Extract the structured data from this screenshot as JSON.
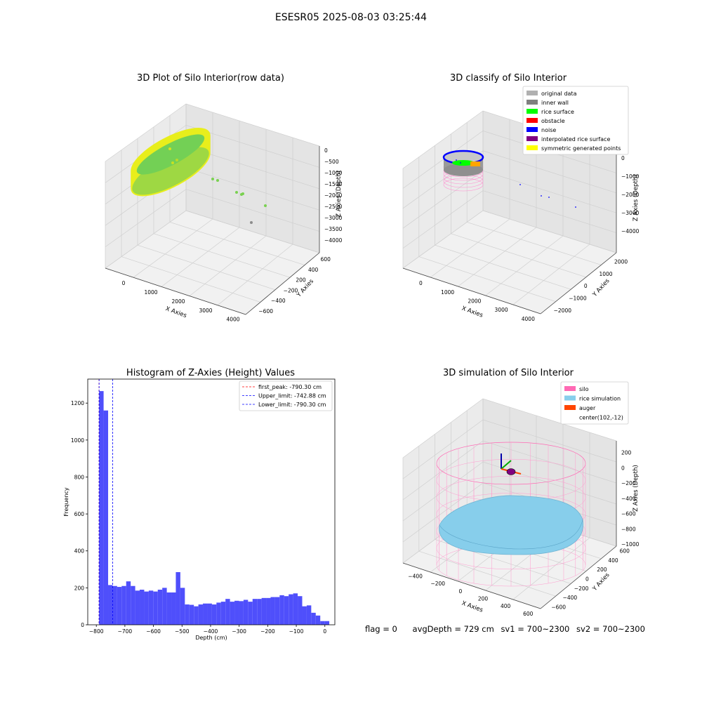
{
  "suptitle": "ESESR05 2025-08-03 03:25:44",
  "footer": {
    "flag": "flag = 0",
    "avg_depth": "avgDepth = 729 cm",
    "sv1": "sv1 = 700~2300",
    "sv2": "sv2 = 700~2300"
  },
  "colors": {
    "hist_bar": "#4f4ffb",
    "first_peak_line": "#ff0000",
    "limit_line": "#0000ff",
    "pane_fill": "#f2f2f2",
    "grid": "#cfcfcf"
  },
  "chart_data": [
    {
      "type": "scatter",
      "projection": "3d",
      "title": "3D Plot of Silo Interior(row data)",
      "xlabel": "X Axies",
      "ylabel": "Y Axies",
      "zlabel": "Z Axies (Depth)",
      "x_ticks": [
        "0",
        "1000",
        "2000",
        "3000",
        "4000"
      ],
      "y_ticks": [
        "600",
        "400",
        "200",
        "−200",
        "−400",
        "−600"
      ],
      "z_ticks": [
        "0",
        "−500",
        "−1000",
        "−1500",
        "−2000",
        "−2500",
        "−3000",
        "−3500",
        "−4000"
      ],
      "colormap": "viridis (yellow-green)",
      "series": [
        {
          "points": [
            [
              0,
              0,
              -300
            ],
            [
              500,
              0,
              -800
            ],
            [
              1000,
              100,
              -1200
            ],
            [
              2200,
              100,
              -1500
            ],
            [
              2600,
              100,
              -1900
            ],
            [
              2900,
              200,
              -2100
            ],
            [
              3600,
              300,
              -2600
            ],
            [
              4000,
              300,
              -3500
            ]
          ]
        }
      ]
    },
    {
      "type": "scatter",
      "projection": "3d",
      "title": "3D classify of Silo Interior",
      "xlabel": "X Axies",
      "ylabel": "Y Axies",
      "zlabel": "Z Axies (Depth)",
      "x_ticks": [
        "0",
        "1000",
        "2000",
        "3000",
        "4000"
      ],
      "y_ticks": [
        "2000",
        "1000",
        "0",
        "−1000",
        "−2000"
      ],
      "z_ticks": [
        "0",
        "−1000",
        "−2000",
        "−3000",
        "−4000"
      ],
      "legend": [
        {
          "label": "original data",
          "color": "#b0b0b0"
        },
        {
          "label": "inner wall",
          "color": "#808080"
        },
        {
          "label": "rice surface",
          "color": "#00ff00"
        },
        {
          "label": "obstacle",
          "color": "#ff0000"
        },
        {
          "label": "noise",
          "color": "#0000ff"
        },
        {
          "label": "interpolated rice surface",
          "color": "#800080"
        },
        {
          "label": "symmetric generated points",
          "color": "#ffff00"
        }
      ],
      "legend_loc": "upper right"
    },
    {
      "type": "bar",
      "title": "Histogram of Z-Axies (Height) Values",
      "xlabel": "Depth (cm)",
      "ylabel": "Frequency",
      "xlim": [
        -830,
        35
      ],
      "ylim": [
        0,
        1330
      ],
      "x_ticks": [
        "−800",
        "−700",
        "−600",
        "−500",
        "−400",
        "−300",
        "−200",
        "−100",
        "0"
      ],
      "y_ticks": [
        "0",
        "200",
        "400",
        "600",
        "800",
        "1000",
        "1200"
      ],
      "bin_start": -790.3,
      "bin_width": 15.8,
      "values": [
        1265,
        1160,
        215,
        210,
        205,
        210,
        235,
        210,
        185,
        190,
        180,
        185,
        180,
        190,
        200,
        175,
        175,
        285,
        200,
        110,
        108,
        100,
        110,
        115,
        115,
        110,
        120,
        125,
        140,
        125,
        130,
        128,
        135,
        125,
        140,
        140,
        145,
        145,
        150,
        150,
        160,
        155,
        165,
        170,
        155,
        100,
        105,
        65,
        50,
        20,
        20
      ],
      "reference_lines": [
        {
          "label": "first_peak: -790.30 cm",
          "x": -790.3,
          "color": "#ff0000"
        },
        {
          "label": "Upper_limit: -742.88 cm",
          "x": -742.88,
          "color": "#0000ff"
        },
        {
          "label": "Lower_limit: -790.30 cm",
          "x": -790.3,
          "color": "#0000ff"
        }
      ],
      "legend_loc": "upper right"
    },
    {
      "type": "scatter",
      "projection": "3d",
      "title": "3D simulation of Silo Interior",
      "xlabel": "X Axies",
      "ylabel": "Y Axies",
      "zlabel": "Z Axies (Depth)",
      "x_ticks": [
        "−400",
        "−200",
        "0",
        "200",
        "400",
        "600"
      ],
      "y_ticks": [
        "600",
        "400",
        "200",
        "0",
        "−200",
        "−400",
        "−600"
      ],
      "z_ticks": [
        "200",
        "0",
        "−200",
        "−400",
        "−600",
        "−800",
        "−1000"
      ],
      "legend": [
        {
          "label": "silo",
          "color": "#ff69b4"
        },
        {
          "label": "rice simulation",
          "color": "#87ceeb"
        },
        {
          "label": "auger",
          "color": "#ff4500"
        },
        {
          "label": "center(102,-12)",
          "color": ""
        }
      ],
      "legend_loc": "upper right"
    }
  ]
}
